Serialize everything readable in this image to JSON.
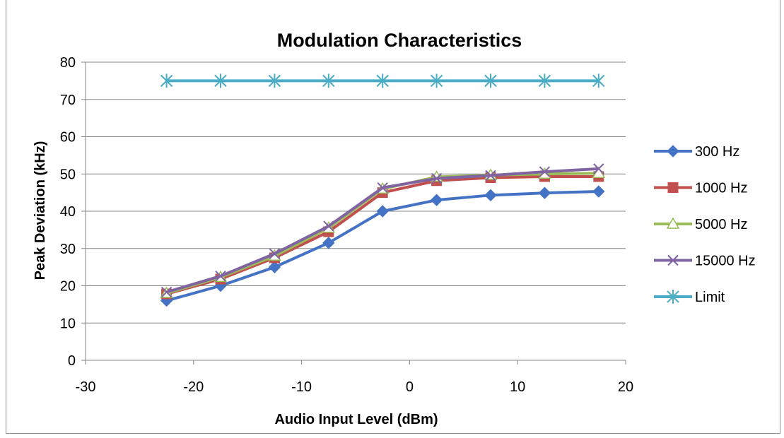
{
  "chart_data": {
    "type": "line",
    "title": "Modulation Characteristics",
    "xlabel": "Audio Input Level (dBm)",
    "ylabel": "Peak Deviation (kHz)",
    "xlim": [
      -30,
      20
    ],
    "ylim": [
      0,
      80
    ],
    "x_ticks": [
      -30,
      -20,
      -10,
      0,
      10,
      20
    ],
    "y_ticks": [
      0,
      10,
      20,
      30,
      40,
      50,
      60,
      70,
      80
    ],
    "grid": "horizontal",
    "legend_position": "right",
    "x": [
      -22.5,
      -17.5,
      -12.5,
      -7.5,
      -2.5,
      2.5,
      7.5,
      12.5,
      17.5
    ],
    "series": [
      {
        "name": "300 Hz",
        "color": "#4472c4",
        "marker": "diamond",
        "values": [
          16,
          20,
          25,
          31.5,
          40,
          43,
          44.3,
          44.9,
          45.3
        ]
      },
      {
        "name": "1000 Hz",
        "color": "#c0504d",
        "marker": "square",
        "values": [
          17.8,
          21.8,
          27.5,
          34.5,
          45,
          48.2,
          49,
          49.3,
          49.3
        ]
      },
      {
        "name": "5000 Hz",
        "color": "#9bbb59",
        "marker": "triangle",
        "values": [
          18,
          22.3,
          28,
          35.5,
          46,
          49.2,
          49.7,
          50,
          50.2
        ]
      },
      {
        "name": "15000 Hz",
        "color": "#8064a2",
        "marker": "x",
        "values": [
          18.3,
          22.6,
          28.6,
          36,
          46.3,
          48.8,
          49.6,
          50.6,
          51.4
        ]
      },
      {
        "name": "Limit",
        "color": "#4bacc6",
        "marker": "asterisk",
        "values": [
          75,
          75,
          75,
          75,
          75,
          75,
          75,
          75,
          75
        ]
      }
    ]
  }
}
